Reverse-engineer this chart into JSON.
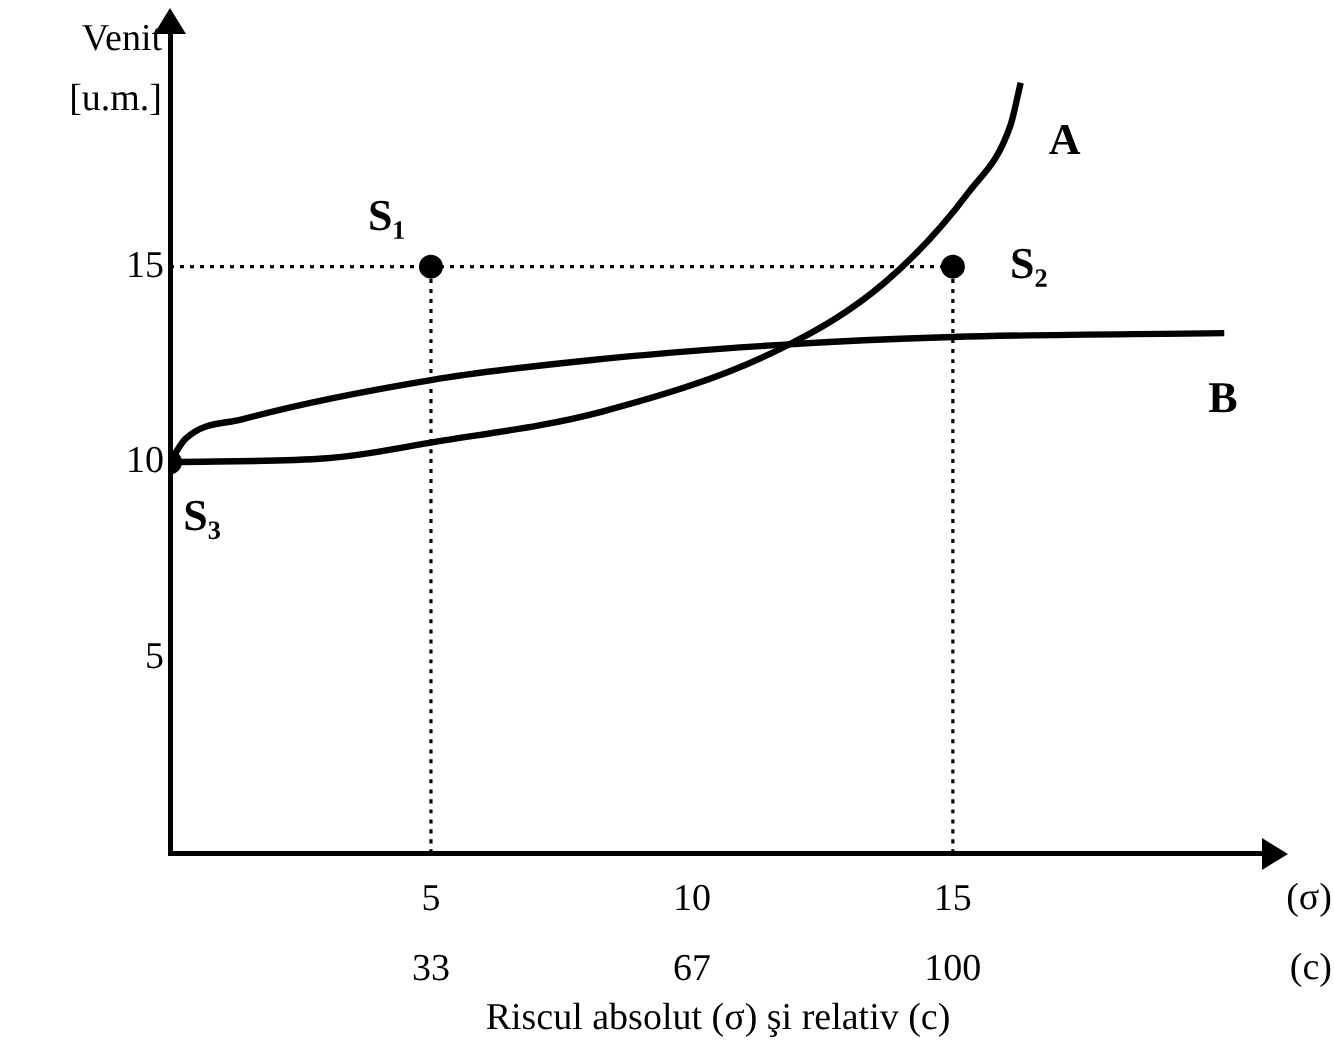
{
  "chart_data": {
    "type": "line",
    "xlabel": "Riscul absolut (σ) şi relativ (c)",
    "ylabel": "Venit [u.m.]",
    "xlim": [
      0,
      21
    ],
    "xticks": [
      5,
      10,
      15
    ],
    "ylim": [
      0,
      21
    ],
    "yticks": [
      5,
      10,
      15
    ],
    "x2lim": [
      0,
      140
    ],
    "x2ticks": [
      {
        "value": 33.33,
        "label": "33"
      },
      {
        "value": 66.67,
        "label": "67"
      },
      100
    ],
    "grid": false,
    "legend": false,
    "series": [
      {
        "name": "A",
        "color": "#000000",
        "x": [
          0,
          3,
          5,
          8.3,
          11.7,
          13.7,
          15.3,
          16.1,
          16.3
        ],
        "values": [
          10,
          10.1,
          10.5,
          11.3,
          12.9,
          14.6,
          16.9,
          18.6,
          19.7
        ]
      },
      {
        "name": "B",
        "color": "#000000",
        "x": [
          0,
          0.3,
          1.4,
          5,
          8,
          11.7,
          15,
          20.2
        ],
        "values": [
          10,
          10.6,
          11.1,
          12.1,
          12.6,
          13,
          13.2,
          13.3
        ]
      },
      {
        "color": "#000000",
        "line_style": "dotted",
        "x": [
          0,
          15
        ],
        "values": [
          15,
          15
        ]
      },
      {
        "color": "#000000",
        "line_style": "dotted",
        "x": [
          5,
          5
        ],
        "values": [
          0,
          15
        ]
      },
      {
        "color": "#000000",
        "line_style": "dotted",
        "x": [
          15,
          15
        ],
        "values": [
          0,
          15
        ]
      },
      {
        "type": "scatter",
        "marker": "circle",
        "color": "#000000",
        "x": [
          5,
          15,
          0
        ],
        "values": [
          15,
          15,
          10
        ]
      }
    ],
    "annotations": [
      {
        "text": "S₁",
        "x": 5,
        "y": 15
      },
      {
        "text": "S₂",
        "x": 15,
        "y": 15
      },
      {
        "text": "S₃",
        "x": 0,
        "y": 10
      },
      "(σ)",
      "(c)"
    ]
  }
}
